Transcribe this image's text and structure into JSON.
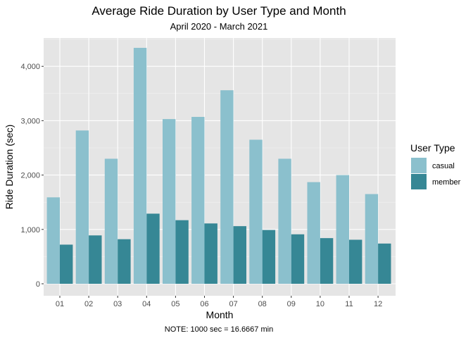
{
  "chart_data": {
    "type": "bar",
    "title": "Average Ride Duration by User Type and Month",
    "subtitle": "April 2020 - March 2021",
    "caption": "NOTE: 1000 sec = 16.6667 min",
    "xlabel": "Month",
    "ylabel": "Ride Duration (sec)",
    "categories": [
      "01",
      "02",
      "03",
      "04",
      "05",
      "06",
      "07",
      "08",
      "09",
      "10",
      "11",
      "12"
    ],
    "ylim": [
      0,
      4550
    ],
    "yticks": [
      0,
      1000,
      2000,
      3000,
      4000
    ],
    "ytick_labels": [
      "0",
      "1,000",
      "2,000",
      "3,000",
      "4,000"
    ],
    "grid": true,
    "legend": {
      "title": "User Type",
      "placement": "right"
    },
    "series": [
      {
        "name": "casual",
        "color": "#8bc0cd",
        "values": [
          1590,
          2820,
          2300,
          4340,
          3030,
          3070,
          3560,
          2650,
          2300,
          1870,
          2000,
          1650
        ]
      },
      {
        "name": "member",
        "color": "#368795",
        "values": [
          720,
          890,
          820,
          1290,
          1170,
          1110,
          1060,
          990,
          910,
          840,
          810,
          740
        ]
      }
    ]
  }
}
